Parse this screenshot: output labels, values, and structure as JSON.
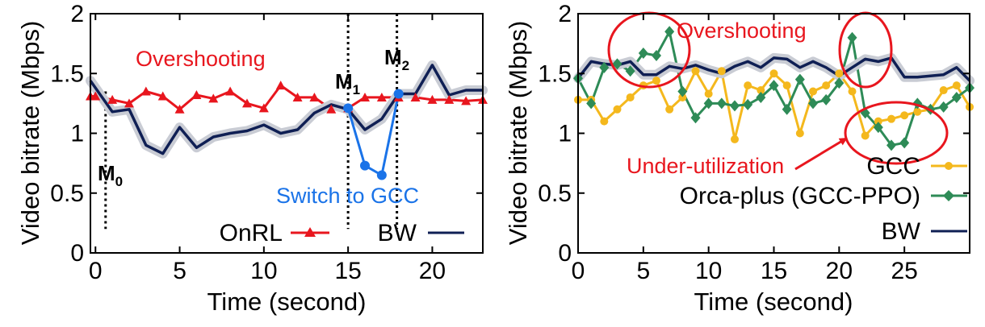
{
  "chart_data": [
    {
      "type": "line",
      "xlabel": "Time (second)",
      "ylabel": "Video bitrate (Mbps)",
      "xlim": [
        -0.3,
        23
      ],
      "ylim": [
        0,
        2
      ],
      "xticks": [
        "0",
        "5",
        "10",
        "15",
        "20"
      ],
      "yticks": [
        "0",
        "0.5",
        "1",
        "1.5",
        "2"
      ],
      "grid": false,
      "legend_position": "bottom-right",
      "series": [
        {
          "name": "OnRL",
          "color": "#e8161e",
          "marker": "triangle",
          "x": [
            -0.3,
            0,
            1,
            2,
            3,
            4,
            5,
            6,
            7,
            8,
            9,
            10,
            11,
            12,
            13,
            14,
            15,
            16,
            17,
            18,
            19,
            20,
            21,
            22,
            23
          ],
          "values": [
            1.31,
            1.31,
            1.28,
            1.25,
            1.35,
            1.31,
            1.2,
            1.32,
            1.29,
            1.35,
            1.25,
            1.21,
            1.4,
            1.3,
            1.3,
            1.2,
            1.21,
            1.3,
            1.3,
            1.3,
            1.3,
            1.28,
            1.28,
            1.27,
            1.28
          ]
        },
        {
          "name": "BW",
          "color": "#0f1f54",
          "x": [
            -0.3,
            1,
            2,
            3,
            4,
            5,
            6,
            7,
            8,
            9,
            10,
            11,
            12,
            13,
            14,
            15,
            16,
            17,
            18,
            19,
            20,
            21,
            22,
            23
          ],
          "values": [
            1.44,
            1.18,
            1.2,
            0.9,
            0.83,
            1.05,
            0.88,
            0.97,
            1.0,
            1.02,
            1.07,
            1.0,
            1.03,
            1.17,
            1.24,
            1.2,
            1.03,
            1.12,
            1.33,
            1.33,
            1.57,
            1.32,
            1.36,
            1.36
          ]
        },
        {
          "color": "#1a73e8",
          "x": [
            15,
            16,
            17,
            18
          ],
          "values": [
            1.21,
            0.73,
            0.65,
            1.33
          ]
        }
      ],
      "annotations": [
        {
          "text": "Overshooting",
          "color": "#e8161e"
        },
        {
          "text": "Switch to GCC",
          "color": "#1a73e8"
        },
        {
          "label": "M",
          "sub": "0",
          "x": 0.6
        },
        {
          "label": "M",
          "sub": "1",
          "x": 15
        },
        {
          "label": "M",
          "sub": "2",
          "x": 17.9
        }
      ]
    },
    {
      "type": "line",
      "xlabel": "Time (second)",
      "ylabel": "Video bitrate (Mbps)",
      "xlim": [
        0,
        30
      ],
      "ylim": [
        0,
        2
      ],
      "xticks": [
        "0",
        "5",
        "10",
        "15",
        "20",
        "25"
      ],
      "yticks": [
        "0",
        "0.5",
        "1",
        "1.5",
        "2"
      ],
      "grid": false,
      "legend_position": "bottom-right",
      "series": [
        {
          "name": "GCC",
          "color": "#f4b81d",
          "marker": "circle",
          "x": [
            0,
            1,
            2,
            3,
            4,
            5,
            6,
            7,
            8,
            9,
            10,
            11,
            12,
            13,
            14,
            15,
            16,
            17,
            18,
            19,
            20,
            21,
            22,
            23,
            24,
            25,
            26,
            27,
            28,
            29,
            30
          ],
          "values": [
            1.28,
            1.28,
            1.1,
            1.2,
            1.3,
            1.4,
            1.44,
            1.2,
            1.3,
            1.52,
            1.33,
            1.52,
            0.95,
            1.4,
            1.36,
            1.5,
            1.4,
            1.0,
            1.35,
            1.4,
            1.5,
            1.35,
            0.98,
            1.1,
            1.12,
            1.15,
            1.18,
            1.2,
            1.36,
            1.4,
            1.22
          ]
        },
        {
          "name": "Orca-plus (GCC-PPO)",
          "color": "#2e8b57",
          "marker": "diamond",
          "x": [
            0,
            1,
            2,
            3,
            4,
            5,
            6,
            7,
            8,
            9,
            10,
            11,
            12,
            13,
            14,
            15,
            16,
            17,
            18,
            19,
            20,
            21,
            22,
            23,
            24,
            25,
            26,
            27,
            28,
            29,
            30
          ],
          "values": [
            1.46,
            1.25,
            1.55,
            1.58,
            1.52,
            1.67,
            1.65,
            1.85,
            1.35,
            1.13,
            1.25,
            1.25,
            1.23,
            1.24,
            1.3,
            1.4,
            1.2,
            1.45,
            1.25,
            1.28,
            1.42,
            1.8,
            1.17,
            1.05,
            0.9,
            0.92,
            1.25,
            1.2,
            1.22,
            1.3,
            1.38
          ]
        },
        {
          "name": "BW",
          "color": "#0f1f54",
          "x": [
            0,
            1,
            2,
            3,
            4,
            5,
            6,
            7,
            8,
            9,
            10,
            11,
            12,
            13,
            14,
            15,
            16,
            17,
            18,
            19,
            20,
            21,
            22,
            23,
            24,
            25,
            26,
            27,
            28,
            29,
            30
          ],
          "values": [
            1.46,
            1.6,
            1.58,
            1.57,
            1.6,
            1.49,
            1.49,
            1.56,
            1.54,
            1.57,
            1.53,
            1.5,
            1.56,
            1.6,
            1.55,
            1.63,
            1.62,
            1.55,
            1.6,
            1.55,
            1.48,
            1.55,
            1.62,
            1.6,
            1.63,
            1.47,
            1.47,
            1.48,
            1.49,
            1.55,
            1.44
          ]
        }
      ],
      "annotations": [
        {
          "text": "Overshooting",
          "color": "#e8161e"
        },
        {
          "text": "Under-utilization",
          "color": "#e8161e"
        }
      ]
    }
  ]
}
